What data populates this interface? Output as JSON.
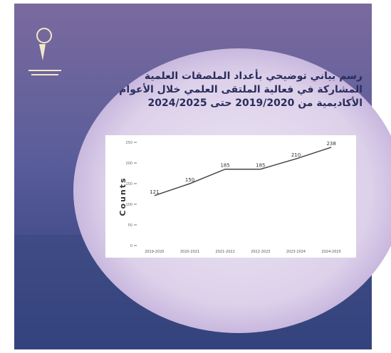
{
  "chart_data": {
    "type": "line",
    "title_lines": [
      "رسم بياني توضيحي بأعداد الملصقات العلمية",
      "المشاركة في فعالية الملتقى العلمي خلال الأعوام",
      "الأكاديمية من 2019/2020 حتى 2024/2025"
    ],
    "y_label": "Counts",
    "categories": [
      "2019-2020",
      "2020-2021",
      "2021-2022",
      "2022-2023",
      "2023-2024",
      "2024-2025"
    ],
    "values": [
      121,
      150,
      185,
      185,
      210,
      238
    ],
    "color": "#444444",
    "ylim": [
      0,
      250
    ],
    "yticks": [
      0,
      50,
      100,
      150,
      200,
      250
    ]
  }
}
